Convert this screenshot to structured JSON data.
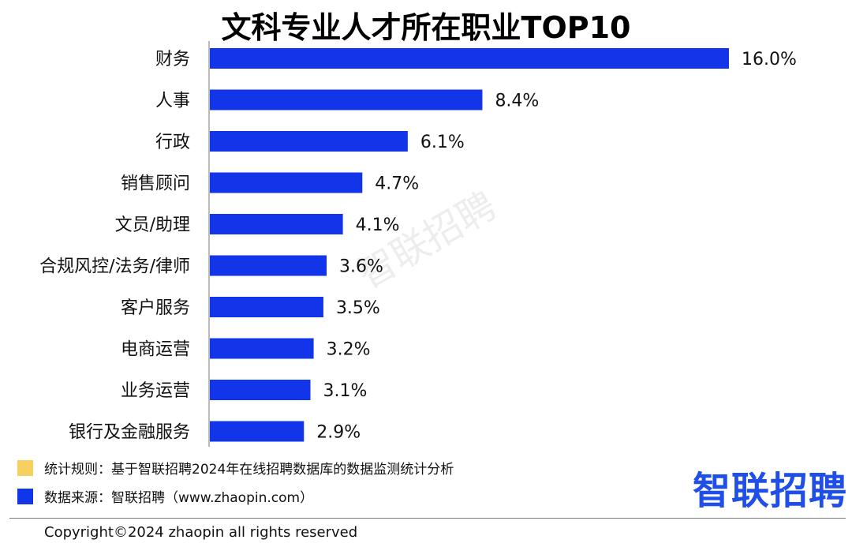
{
  "watermark": "智联招聘",
  "notes": {
    "rule": "统计规则：基于智联招聘2024年在线招聘数据库的数据监测统计分析",
    "source": "数据来源：智联招聘（www.zhaopin.com）",
    "rule_color": "#f7d060",
    "source_color": "#1235ea"
  },
  "logo": "智联招聘",
  "copyright": "Copyright©2024 zhaopin all rights reserved",
  "colors": {
    "bar": "#1235ea",
    "axis": "#bbbbbb"
  },
  "chart_data": {
    "type": "bar",
    "orientation": "horizontal",
    "title": "文科专业人才所在职业TOP10",
    "categories": [
      "财务",
      "人事",
      "行政",
      "销售顾问",
      "文员/助理",
      "合规风控/法务/律师",
      "客户服务",
      "电商运营",
      "业务运营",
      "银行及金融服务"
    ],
    "values": [
      16.0,
      8.4,
      6.1,
      4.7,
      4.1,
      3.6,
      3.5,
      3.2,
      3.1,
      2.9
    ],
    "value_labels": [
      "16.0%",
      "8.4%",
      "6.1%",
      "4.7%",
      "4.1%",
      "3.6%",
      "3.5%",
      "3.2%",
      "3.1%",
      "2.9%"
    ],
    "unit": "%",
    "xlim": [
      0,
      16.0
    ],
    "grid": false,
    "legend": "none"
  }
}
